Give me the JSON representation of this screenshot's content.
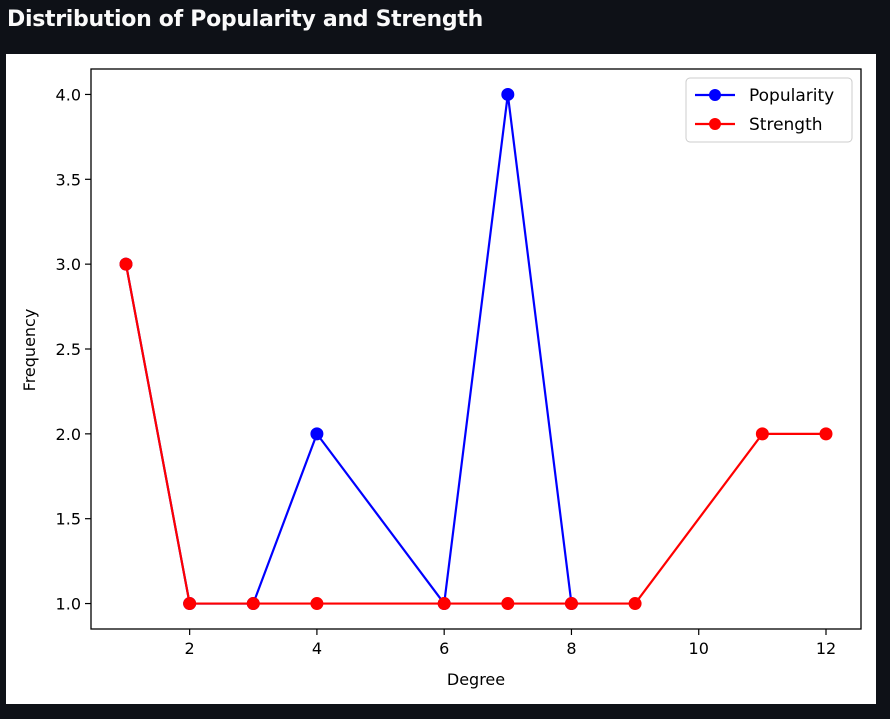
{
  "page": {
    "title": "Distribution of Popularity and Strength"
  },
  "chart_data": {
    "type": "line",
    "title": "",
    "xlabel": "Degree",
    "ylabel": "Frequency",
    "xlim": [
      0.45,
      12.55
    ],
    "ylim": [
      0.85,
      4.15
    ],
    "xticks": [
      2,
      4,
      6,
      8,
      10,
      12
    ],
    "xtick_labels": [
      "2",
      "4",
      "6",
      "8",
      "10",
      "12"
    ],
    "yticks": [
      1.0,
      1.5,
      2.0,
      2.5,
      3.0,
      3.5,
      4.0
    ],
    "ytick_labels": [
      "1.0",
      "1.5",
      "2.0",
      "2.5",
      "3.0",
      "3.5",
      "4.0"
    ],
    "grid": false,
    "legend_position": "top-right",
    "series": [
      {
        "name": "Popularity",
        "color": "#0000ff",
        "marker": "circle",
        "x": [
          1,
          2,
          3,
          4,
          6,
          7,
          8
        ],
        "y": [
          3,
          1,
          1,
          2,
          1,
          4,
          1
        ]
      },
      {
        "name": "Strength",
        "color": "#ff0000",
        "marker": "circle",
        "x": [
          1,
          2,
          3,
          4,
          6,
          7,
          8,
          9,
          11,
          12
        ],
        "y": [
          3,
          1,
          1,
          1,
          1,
          1,
          1,
          1,
          2,
          2
        ]
      }
    ]
  },
  "colors": {
    "app_background": "#0e1117",
    "title_text": "#fafafa",
    "figure_background": "#ffffff"
  }
}
